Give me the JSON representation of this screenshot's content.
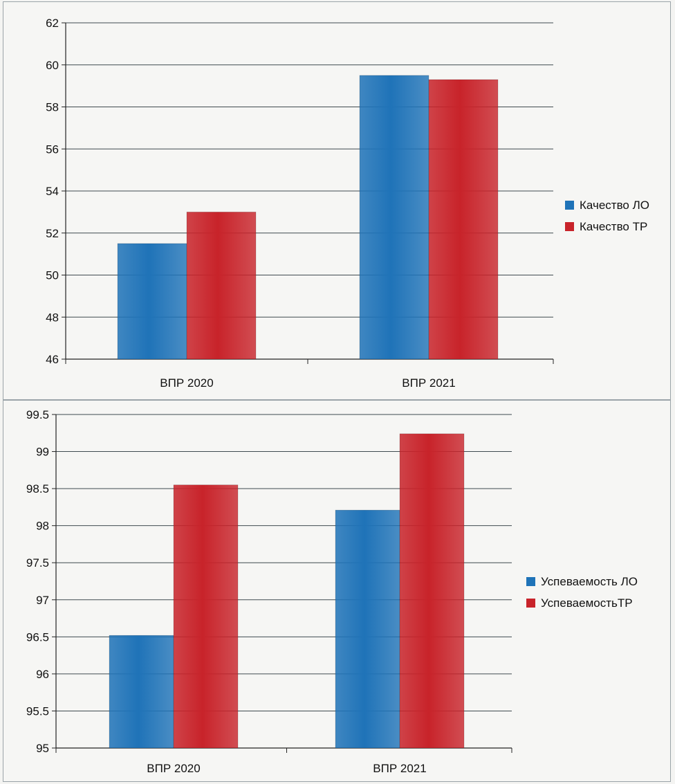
{
  "colors": {
    "lo": "#1f73b8",
    "tr": "#c8232a",
    "grid": "#3f4a4f"
  },
  "chart_data": [
    {
      "type": "bar",
      "categories": [
        "ВПР 2020",
        "ВПР 2021"
      ],
      "series": [
        {
          "name": "Качество ЛО",
          "values": [
            51.5,
            59.5
          ]
        },
        {
          "name": "Качество ТР",
          "values": [
            53.0,
            59.3
          ]
        }
      ],
      "ylim": [
        46,
        62
      ],
      "yticks": [
        "46",
        "48",
        "50",
        "52",
        "54",
        "56",
        "58",
        "60",
        "62"
      ],
      "grid": true,
      "legend": "right"
    },
    {
      "type": "bar",
      "categories": [
        "ВПР 2020",
        "ВПР 2021"
      ],
      "series": [
        {
          "name": "Успеваемость ЛО",
          "values": [
            96.52,
            98.21
          ]
        },
        {
          "name": "УспеваемостьТР",
          "values": [
            98.55,
            99.24
          ]
        }
      ],
      "ylim": [
        95,
        99.5
      ],
      "yticks": [
        "95",
        "95.5",
        "96",
        "96.5",
        "97",
        "97.5",
        "98",
        "98.5",
        "99",
        "99.5"
      ],
      "grid": true,
      "legend": "right"
    }
  ]
}
